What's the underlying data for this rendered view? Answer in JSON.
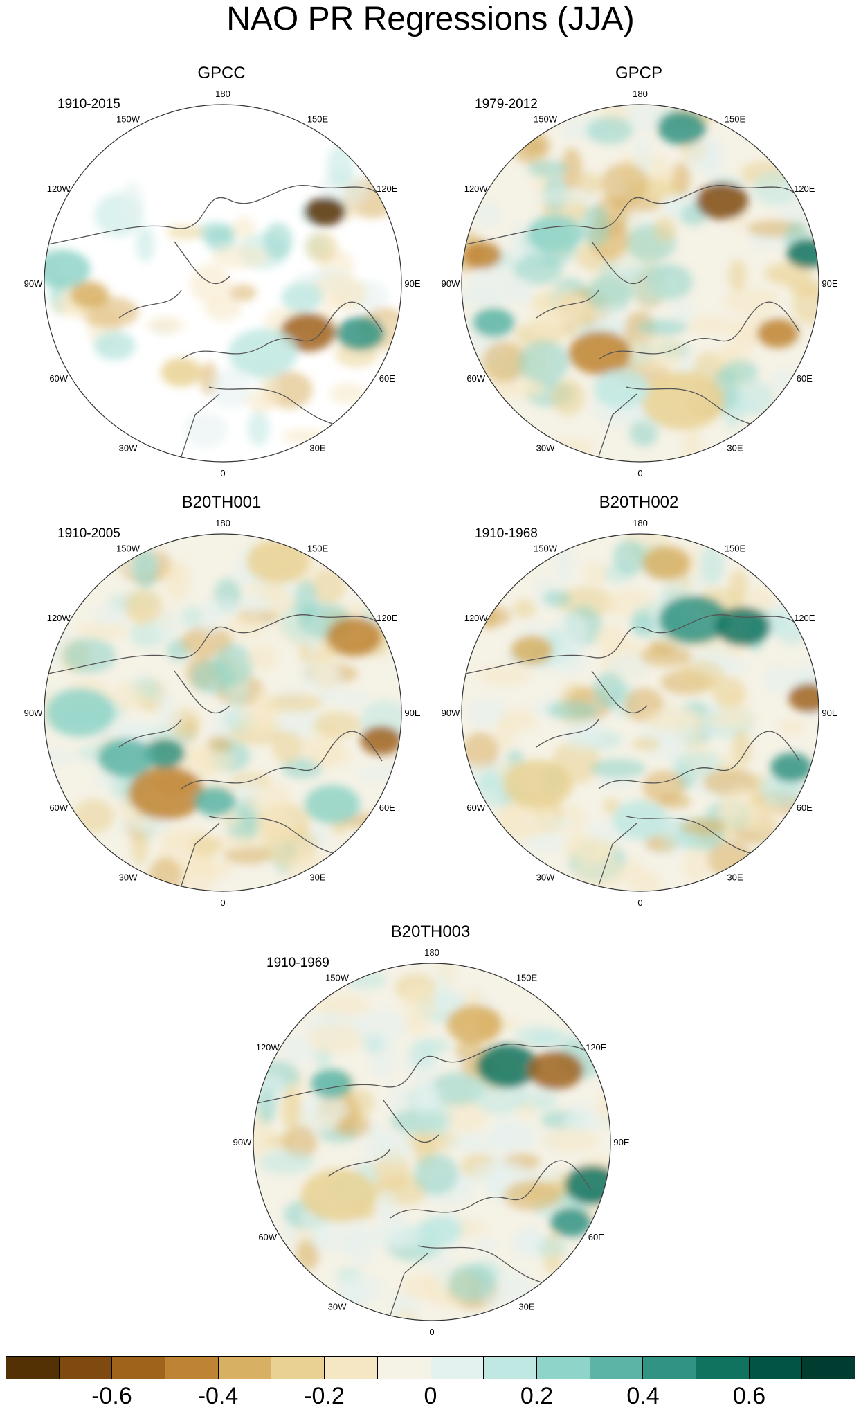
{
  "title": "NAO PR Regressions (JJA)",
  "lon_labels": [
    "180",
    "150E",
    "120E",
    "90E",
    "60E",
    "30E",
    "0",
    "30W",
    "60W",
    "90W",
    "120W",
    "150W"
  ],
  "panels": [
    {
      "name": "GPCC",
      "period": "1910-2015"
    },
    {
      "name": "GPCP",
      "period": "1979-2012"
    },
    {
      "name": "B20TH001",
      "period": "1910-2005"
    },
    {
      "name": "B20TH002",
      "period": "1910-1968"
    },
    {
      "name": "B20TH003",
      "period": "1910-1969"
    }
  ],
  "colorbar": {
    "colors": [
      "#543005",
      "#7f4a0f",
      "#a0631c",
      "#be8433",
      "#d8b064",
      "#e9d193",
      "#f5e7c4",
      "#f5f2e6",
      "#e3f1ef",
      "#c0e8e2",
      "#8fd4c8",
      "#5bb4a6",
      "#319383",
      "#10735f",
      "#015544",
      "#003c30"
    ],
    "tick_labels": [
      "-0.6",
      "-0.4",
      "-0.2",
      "0",
      "0.2",
      "0.4",
      "0.6"
    ],
    "tick_values": [
      -0.6,
      -0.4,
      -0.2,
      0,
      0.2,
      0.4,
      0.6
    ],
    "min": -0.8,
    "max": 0.8
  },
  "chart_data": {
    "type": "heatmap",
    "projection": "north polar stereographic",
    "title": "NAO PR Regressions (JJA)",
    "panels": [
      "GPCC",
      "GPCP",
      "B20TH001",
      "B20TH002",
      "B20TH003"
    ],
    "color_levels": [
      -0.7,
      -0.6,
      -0.5,
      -0.4,
      -0.3,
      -0.2,
      -0.1,
      0,
      0.1,
      0.2,
      0.3,
      0.4,
      0.5,
      0.6,
      0.7
    ],
    "grid": false,
    "legend": "bottom"
  }
}
